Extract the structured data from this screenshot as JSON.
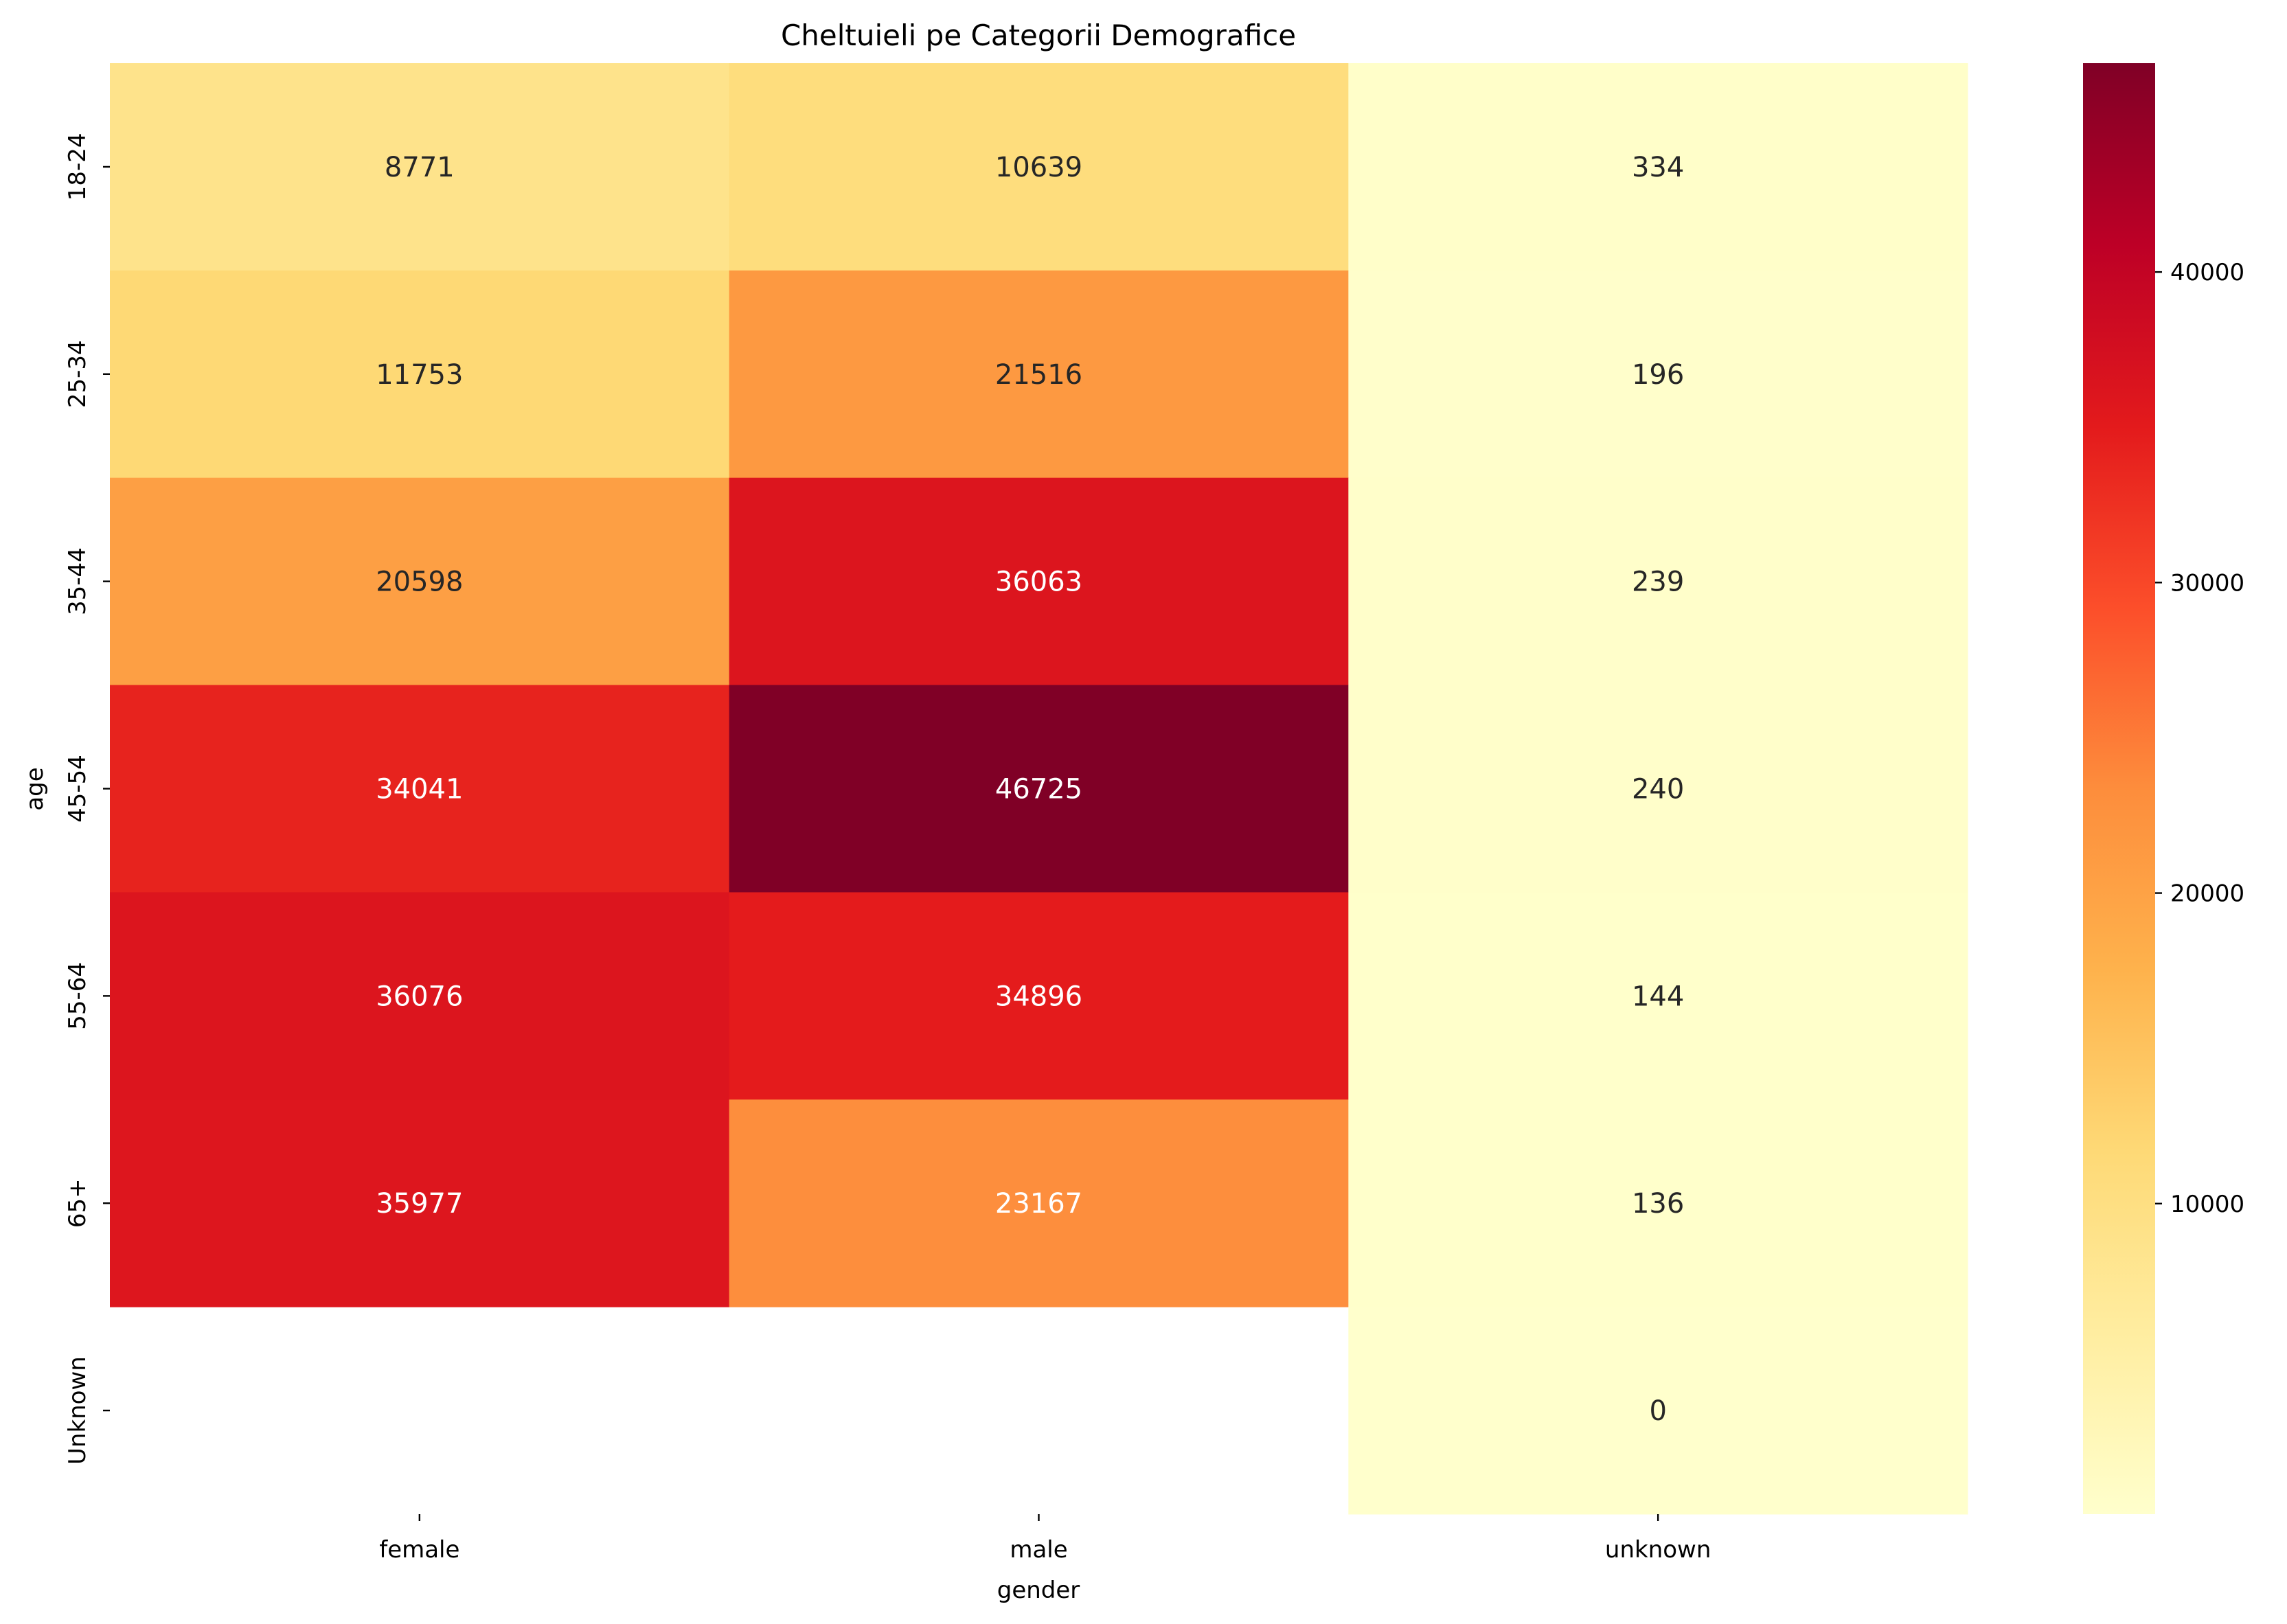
{
  "chart_data": {
    "type": "heatmap",
    "title": "Cheltuieli pe Categorii Demografice",
    "xlabel": "gender",
    "ylabel": "age",
    "x_categories": [
      "female",
      "male",
      "unknown"
    ],
    "y_categories": [
      "18-24",
      "25-34",
      "35-44",
      "45-54",
      "55-64",
      "65+",
      "Unknown"
    ],
    "values": [
      [
        8771,
        10639,
        334
      ],
      [
        11753,
        21516,
        196
      ],
      [
        20598,
        36063,
        239
      ],
      [
        34041,
        46725,
        240
      ],
      [
        36076,
        34896,
        144
      ],
      [
        35977,
        23167,
        136
      ],
      [
        null,
        null,
        0
      ]
    ],
    "colormap": "YlOrRd",
    "vmin": 0,
    "vmax": 46725,
    "colorbar": {
      "ticks": [
        10000,
        20000,
        30000,
        40000
      ],
      "tick_labels": [
        "10000",
        "20000",
        "30000",
        "40000"
      ],
      "placement": "right"
    },
    "annotations": true,
    "grid": false
  }
}
